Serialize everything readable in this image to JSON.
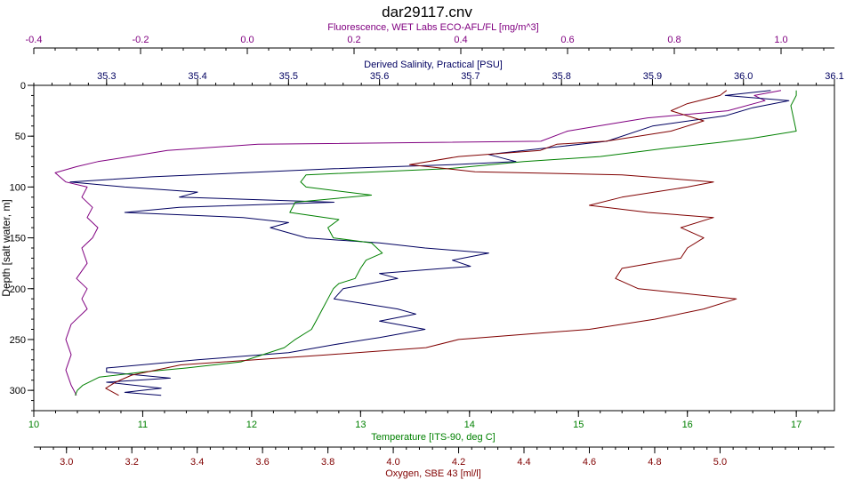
{
  "chart_data": {
    "type": "line",
    "title": "dar29117.cnv",
    "colors": {
      "fluorescence": "#800080",
      "salinity": "#000060",
      "temperature": "#008000",
      "oxygen": "#800000",
      "frame": "#000000"
    },
    "axes": {
      "depth": {
        "label": "Depth [salt water, m]",
        "range": [
          0,
          320
        ],
        "ticks": [
          0,
          50,
          100,
          150,
          200,
          250,
          300
        ],
        "inverted": true
      },
      "fluorescence": {
        "label": "Fluorescence, WET Labs ECO-AFL/FL [mg/m^3]",
        "position": "top",
        "range": [
          -0.4,
          1.1
        ],
        "ticks": [
          "-0.4",
          "-0.2",
          "0.0",
          "0.2",
          "0.4",
          "0.6",
          "0.8",
          "1.0"
        ]
      },
      "salinity": {
        "label": "Derived Salinity, Practical [PSU]",
        "position": "top",
        "range": [
          35.22,
          36.1
        ],
        "ticks": [
          "35.3",
          "35.4",
          "35.5",
          "35.6",
          "35.7",
          "35.8",
          "35.9",
          "36.0",
          "36.1"
        ]
      },
      "temperature": {
        "label": "Temperature [ITS-90, deg C]",
        "position": "bottom",
        "range": [
          10,
          17.35
        ],
        "ticks": [
          "10",
          "11",
          "12",
          "13",
          "14",
          "15",
          "16",
          "17"
        ]
      },
      "oxygen": {
        "label": "Oxygen, SBE 43 [ml/l]",
        "position": "bottom",
        "range": [
          2.9,
          5.35
        ],
        "ticks": [
          "3.0",
          "3.2",
          "3.4",
          "3.6",
          "3.8",
          "4.0",
          "4.2",
          "4.4",
          "4.6",
          "4.8",
          "5.0"
        ]
      }
    },
    "series": [
      {
        "name": "Fluorescence, WET Labs ECO-AFL/FL [mg/m^3]",
        "axis": "fluorescence",
        "points": [
          [
            1.0,
            5
          ],
          [
            0.95,
            10
          ],
          [
            0.97,
            15
          ],
          [
            0.9,
            25
          ],
          [
            0.75,
            32
          ],
          [
            0.68,
            38
          ],
          [
            0.6,
            45
          ],
          [
            0.55,
            55
          ],
          [
            0.02,
            58
          ],
          [
            -0.15,
            64
          ],
          [
            -0.22,
            70
          ],
          [
            -0.28,
            75
          ],
          [
            -0.32,
            80
          ],
          [
            -0.36,
            86
          ],
          [
            -0.34,
            95
          ],
          [
            -0.3,
            100
          ],
          [
            -0.31,
            110
          ],
          [
            -0.29,
            120
          ],
          [
            -0.3,
            130
          ],
          [
            -0.28,
            140
          ],
          [
            -0.29,
            150
          ],
          [
            -0.31,
            160
          ],
          [
            -0.3,
            175
          ],
          [
            -0.32,
            190
          ],
          [
            -0.3,
            200
          ],
          [
            -0.31,
            210
          ],
          [
            -0.3,
            220
          ],
          [
            -0.33,
            235
          ],
          [
            -0.34,
            250
          ],
          [
            -0.33,
            265
          ],
          [
            -0.34,
            280
          ],
          [
            -0.33,
            295
          ],
          [
            -0.32,
            305
          ]
        ]
      },
      {
        "name": "Derived Salinity, Practical [PSU]",
        "axis": "salinity",
        "points": [
          [
            36.03,
            5
          ],
          [
            35.98,
            10
          ],
          [
            36.05,
            15
          ],
          [
            36.01,
            22
          ],
          [
            35.98,
            30
          ],
          [
            35.9,
            40
          ],
          [
            35.85,
            55
          ],
          [
            35.78,
            62
          ],
          [
            35.72,
            68
          ],
          [
            35.75,
            75
          ],
          [
            35.68,
            78
          ],
          [
            35.55,
            82
          ],
          [
            35.45,
            86
          ],
          [
            35.35,
            90
          ],
          [
            35.26,
            95
          ],
          [
            35.32,
            100
          ],
          [
            35.4,
            105
          ],
          [
            35.38,
            110
          ],
          [
            35.55,
            115
          ],
          [
            35.38,
            120
          ],
          [
            35.32,
            125
          ],
          [
            35.45,
            130
          ],
          [
            35.5,
            135
          ],
          [
            35.48,
            140
          ],
          [
            35.52,
            150
          ],
          [
            35.6,
            155
          ],
          [
            35.65,
            160
          ],
          [
            35.72,
            165
          ],
          [
            35.68,
            172
          ],
          [
            35.7,
            178
          ],
          [
            35.6,
            185
          ],
          [
            35.62,
            190
          ],
          [
            35.56,
            200
          ],
          [
            35.55,
            210
          ],
          [
            35.62,
            220
          ],
          [
            35.64,
            225
          ],
          [
            35.6,
            232
          ],
          [
            35.65,
            240
          ],
          [
            35.6,
            248
          ],
          [
            35.55,
            255
          ],
          [
            35.5,
            263
          ],
          [
            35.4,
            270
          ],
          [
            35.3,
            278
          ],
          [
            35.3,
            282
          ],
          [
            35.37,
            288
          ],
          [
            35.3,
            292
          ],
          [
            35.36,
            298
          ],
          [
            35.32,
            302
          ],
          [
            35.36,
            305
          ]
        ]
      },
      {
        "name": "Temperature [ITS-90, deg C]",
        "axis": "temperature",
        "points": [
          [
            17.0,
            5
          ],
          [
            17.0,
            10
          ],
          [
            16.95,
            20
          ],
          [
            17.0,
            45
          ],
          [
            16.6,
            52
          ],
          [
            16.3,
            56
          ],
          [
            15.8,
            62
          ],
          [
            15.2,
            70
          ],
          [
            14.5,
            75
          ],
          [
            13.8,
            82
          ],
          [
            12.5,
            88
          ],
          [
            12.45,
            95
          ],
          [
            12.5,
            100
          ],
          [
            13.1,
            108
          ],
          [
            12.4,
            115
          ],
          [
            12.35,
            125
          ],
          [
            12.8,
            132
          ],
          [
            12.7,
            140
          ],
          [
            12.75,
            150
          ],
          [
            13.1,
            155
          ],
          [
            13.2,
            165
          ],
          [
            13.05,
            172
          ],
          [
            13.0,
            180
          ],
          [
            12.95,
            190
          ],
          [
            12.8,
            195
          ],
          [
            12.75,
            200
          ],
          [
            12.7,
            210
          ],
          [
            12.65,
            220
          ],
          [
            12.6,
            230
          ],
          [
            12.55,
            240
          ],
          [
            12.4,
            250
          ],
          [
            12.3,
            258
          ],
          [
            12.1,
            265
          ],
          [
            11.9,
            272
          ],
          [
            11.4,
            278
          ],
          [
            11.0,
            282
          ],
          [
            10.6,
            287
          ],
          [
            10.45,
            295
          ],
          [
            10.4,
            300
          ],
          [
            10.38,
            305
          ]
        ]
      },
      {
        "name": "Oxygen, SBE 43 [ml/l]",
        "axis": "oxygen",
        "points": [
          [
            5.02,
            5
          ],
          [
            5.0,
            10
          ],
          [
            4.9,
            18
          ],
          [
            4.85,
            25
          ],
          [
            4.95,
            35
          ],
          [
            4.85,
            45
          ],
          [
            4.75,
            50
          ],
          [
            4.65,
            55
          ],
          [
            4.5,
            58
          ],
          [
            4.45,
            64
          ],
          [
            4.2,
            70
          ],
          [
            4.05,
            78
          ],
          [
            4.25,
            85
          ],
          [
            4.7,
            88
          ],
          [
            4.98,
            95
          ],
          [
            4.9,
            100
          ],
          [
            4.7,
            110
          ],
          [
            4.6,
            118
          ],
          [
            4.78,
            125
          ],
          [
            4.98,
            130
          ],
          [
            4.88,
            140
          ],
          [
            4.95,
            150
          ],
          [
            4.9,
            160
          ],
          [
            4.88,
            170
          ],
          [
            4.7,
            180
          ],
          [
            4.68,
            190
          ],
          [
            4.75,
            200
          ],
          [
            5.05,
            210
          ],
          [
            4.95,
            220
          ],
          [
            4.8,
            230
          ],
          [
            4.6,
            240
          ],
          [
            4.2,
            250
          ],
          [
            4.1,
            258
          ],
          [
            3.8,
            265
          ],
          [
            3.35,
            275
          ],
          [
            3.2,
            285
          ],
          [
            3.15,
            292
          ],
          [
            3.12,
            298
          ],
          [
            3.16,
            305
          ]
        ]
      }
    ]
  }
}
